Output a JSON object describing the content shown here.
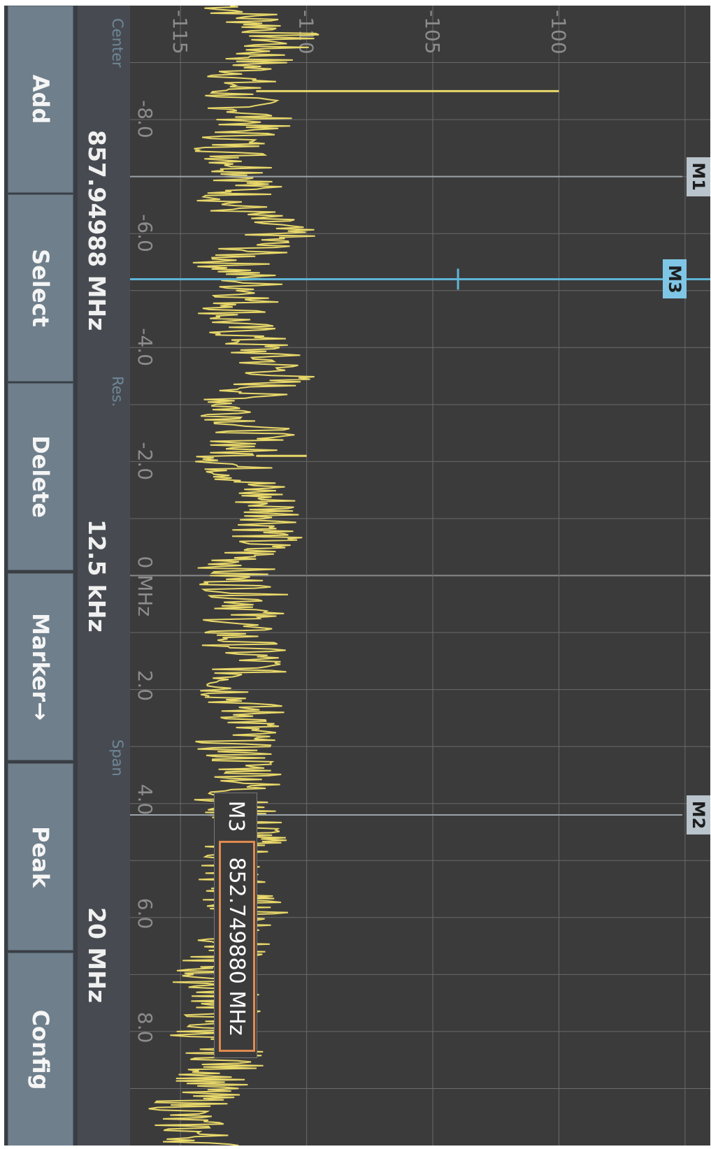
{
  "plot": {
    "amplitude_labels": [
      "-115",
      "-110",
      "-105",
      "-100"
    ],
    "frequency_labels": [
      "-8.0",
      "-6.0",
      "-4.0",
      "-2.0",
      "0 MHz",
      "2.0",
      "4.0",
      "6.0",
      "8.0"
    ],
    "trace_color": "#e8d86a",
    "marker_line_color": "#5fb4d6",
    "grid_color": "#6a6a6a"
  },
  "markers": [
    {
      "name": "M1",
      "offset_mhz": -7.0,
      "color": "#b9c4cc"
    },
    {
      "name": "M3",
      "offset_mhz": -5.2,
      "color": "#7fc6e6",
      "active": true
    },
    {
      "name": "M2",
      "offset_mhz": 4.2,
      "color": "#b9c4cc"
    }
  ],
  "marker_readout": {
    "name": "M3",
    "value": "852.749880 MHz"
  },
  "info_bar": {
    "center_label": "Center",
    "center_value": "857.94988 MHz",
    "res_label": "Res.",
    "res_value": "12.5 kHz",
    "span_label": "Span",
    "span_value": "20 MHz"
  },
  "softkeys": [
    "Add",
    "Select",
    "Delete",
    "Marker→",
    "Peak",
    "Config"
  ],
  "chart_data": {
    "type": "line",
    "xlabel": "",
    "ylabel": "",
    "xlim": [
      -10,
      10
    ],
    "ylim": [
      -117,
      -94
    ],
    "x_ticks": [
      -8,
      -6,
      -4,
      -2,
      0,
      2,
      4,
      6,
      8
    ],
    "y_ticks": [
      -115,
      -110,
      -105,
      -100
    ],
    "grid": true,
    "series": [
      {
        "x": [
          -10,
          -9.5,
          -9,
          -8.5,
          -8,
          -7.5,
          -7,
          -6.5,
          -6,
          -5.5,
          -5,
          -4.5,
          -4,
          -3.5,
          -3,
          -2.5,
          -2,
          -1.5,
          -1,
          -0.5,
          0,
          0.5,
          1,
          1.5,
          2,
          2.5,
          3,
          3.5,
          4,
          4.5,
          5,
          5.5,
          6,
          6.5,
          7,
          7.5,
          8,
          8.5,
          9,
          9.5,
          10
        ],
        "y": [
          -113,
          -111,
          -112,
          -113,
          -112,
          -113,
          -112,
          -113,
          -111,
          -113,
          -112,
          -113,
          -112,
          -111,
          -113,
          -112,
          -113,
          -112,
          -111,
          -112,
          -113,
          -112,
          -113,
          -112,
          -113,
          -112,
          -113,
          -112,
          -113,
          -112,
          -113,
          -113,
          -112,
          -113,
          -114,
          -113,
          -114,
          -113,
          -114,
          -115,
          -114
        ]
      }
    ],
    "peaks": [
      {
        "x": -8.5,
        "y": -100
      },
      {
        "x": -5.2,
        "y": -104
      },
      {
        "x": -2.1,
        "y": -110
      }
    ]
  }
}
